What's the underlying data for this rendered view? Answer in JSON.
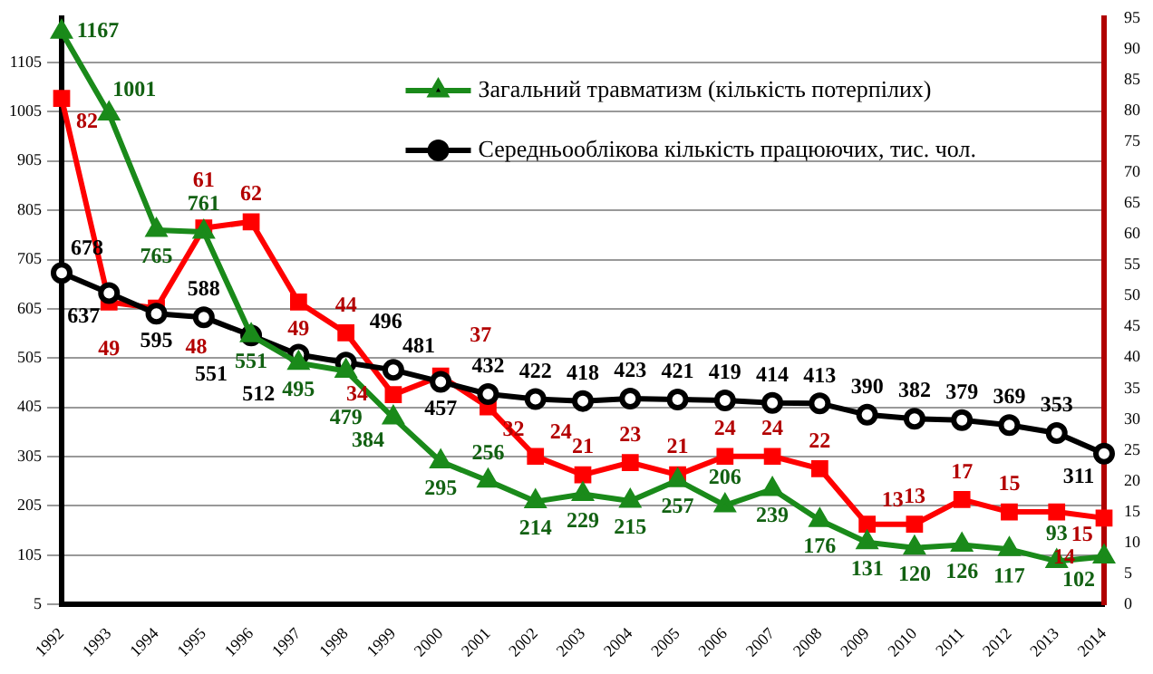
{
  "chart_data": {
    "type": "line",
    "categories": [
      "1992",
      "1993",
      "1994",
      "1995",
      "1996",
      "1997",
      "1998",
      "1999",
      "2000",
      "2001",
      "2002",
      "2003",
      "2004",
      "2005",
      "2006",
      "2007",
      "2008",
      "2009",
      "2010",
      "2011",
      "2012",
      "2013",
      "2014"
    ],
    "series": [
      {
        "name": "Загальний травматизм (кількість потерпілих)",
        "color": "#1a8a1a",
        "marker": "triangle",
        "values": [
          1167,
          1001,
          765,
          761,
          551,
          495,
          479,
          384,
          295,
          256,
          214,
          229,
          215,
          257,
          206,
          239,
          176,
          131,
          120,
          126,
          117,
          93,
          102
        ]
      },
      {
        "name": "Середньооблікова кількість працюючих, тис. чол.",
        "color": "#000000",
        "marker": "circle",
        "values": [
          678,
          637,
          595,
          588,
          551,
          512,
          496,
          481,
          457,
          432,
          422,
          418,
          423,
          421,
          419,
          414,
          413,
          390,
          382,
          379,
          369,
          353,
          311
        ]
      },
      {
        "color": "#ff0000",
        "marker": "square",
        "axis": "y2",
        "values": [
          82,
          49,
          48,
          61,
          62,
          49,
          44,
          34,
          37,
          32,
          24,
          21,
          23,
          21,
          24,
          24,
          22,
          13,
          13,
          17,
          15,
          15,
          14
        ]
      }
    ],
    "ylim": [
      5,
      1195
    ],
    "yticks": [
      5,
      105,
      205,
      305,
      405,
      505,
      605,
      705,
      805,
      905,
      1005,
      1105
    ],
    "y2lim": [
      0,
      95
    ],
    "y2ticks": [
      0,
      5,
      10,
      15,
      20,
      25,
      30,
      35,
      40,
      45,
      50,
      55,
      60,
      65,
      70,
      75,
      80,
      85,
      90,
      95
    ],
    "grid": "y",
    "legend": "top",
    "data_labels": true,
    "line_style": "solid"
  }
}
